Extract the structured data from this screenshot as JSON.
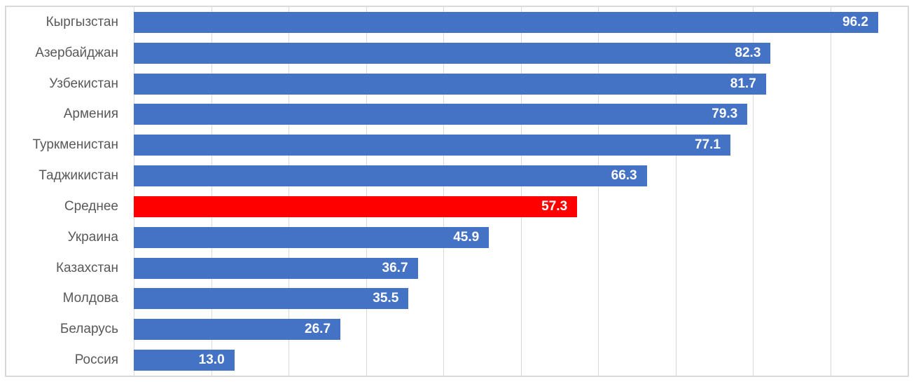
{
  "chart_data": {
    "type": "bar",
    "orientation": "horizontal",
    "title": "",
    "xlabel": "",
    "ylabel": "",
    "legend": "none",
    "xlim": [
      0,
      100
    ],
    "gridline_interval": 10,
    "grid": "vertical-only",
    "value_labels_position": "inside-end",
    "categories": [
      "Кыргызстан",
      "Азербайджан",
      "Узбекистан",
      "Армения",
      "Туркменистан",
      "Таджикистан",
      "Среднее",
      "Украина",
      "Казахстан",
      "Молдова",
      "Беларусь",
      "Россия"
    ],
    "values": [
      96.2,
      82.3,
      81.7,
      79.3,
      77.1,
      66.3,
      57.3,
      45.9,
      36.7,
      35.5,
      26.7,
      13.0
    ],
    "value_labels": [
      "96.2",
      "82.3",
      "81.7",
      "79.3",
      "77.1",
      "66.3",
      "57.3",
      "45.9",
      "36.7",
      "35.5",
      "26.7",
      "13.0"
    ],
    "highlight_category": "Среднее",
    "highlight_index": 6,
    "colors": {
      "bar": "#4472C4",
      "highlight_bar": "#FF0000",
      "category_text": "#595959",
      "value_text": "#FFFFFF",
      "gridline": "#D9D9D9",
      "chart_border": "#D9D9D9",
      "background": "#FFFFFF"
    }
  }
}
